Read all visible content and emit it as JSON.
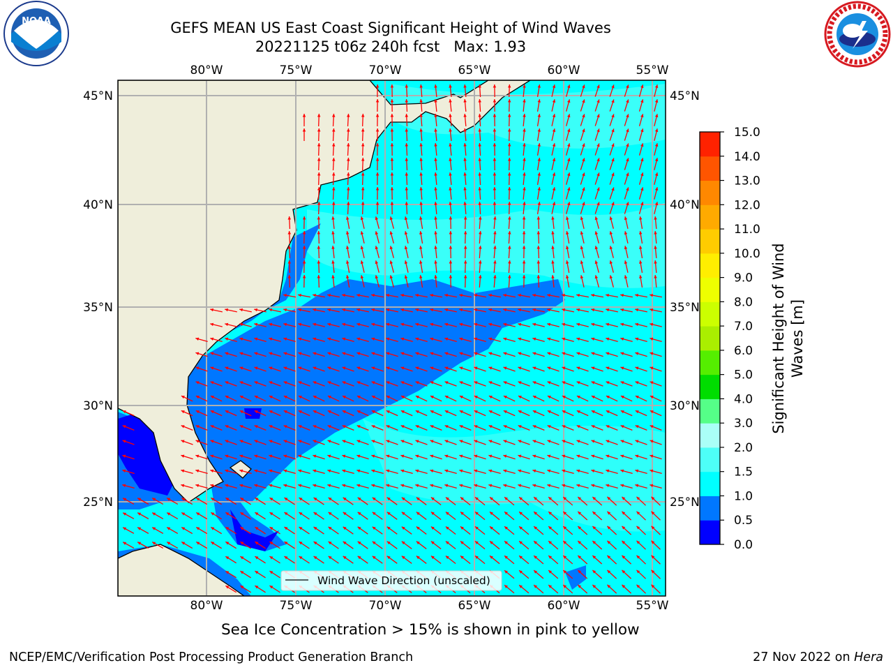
{
  "header": {
    "title_line1": "GEFS MEAN US East Coast Significant Height of Wind Waves",
    "title_line2": "20221125 t06z 240h fcst   Max: 1.93"
  },
  "logos": {
    "left": {
      "icon": "noaa-logo",
      "text": "NOAA"
    },
    "right": {
      "icon": "national-weather-service-logo"
    }
  },
  "map": {
    "lon_ticks": [
      "80°W",
      "75°W",
      "70°W",
      "65°W",
      "60°W",
      "55°W"
    ],
    "lat_ticks_left": [
      "45°N",
      "40°N",
      "35°N",
      "30°N",
      "25°N"
    ],
    "lat_ticks_right": [
      "45°N",
      "40°N",
      "35°N",
      "30°N",
      "25°N"
    ],
    "legend_label": "Wind Wave Direction (unscaled)",
    "colors": {
      "land": "#efeedb",
      "arrow": "#ff0000",
      "grid": "#b0b0b0"
    }
  },
  "colorbar": {
    "label_line1": "Significant Height of Wind",
    "label_line2": "Waves [m]",
    "ticks": [
      "0.0",
      "0.5",
      "1.0",
      "1.5",
      "2.0",
      "3.0",
      "4.0",
      "5.0",
      "6.0",
      "7.0",
      "8.0",
      "9.0",
      "10.0",
      "11.0",
      "12.0",
      "13.0",
      "14.0",
      "15.0"
    ],
    "colors": [
      "#0000ff",
      "#0077ff",
      "#00ffff",
      "#4dfff7",
      "#aafff7",
      "#55ff88",
      "#00dd00",
      "#55ee00",
      "#aaee00",
      "#ccff00",
      "#eeff00",
      "#ffee00",
      "#ffcc00",
      "#ffaa00",
      "#ff8800",
      "#ff5500",
      "#ff2200"
    ]
  },
  "notes": {
    "sea_ice": "Sea Ice Concentration > 15% is shown in pink to yellow",
    "footer_left": "NCEP/EMC/Verification Post Processing Product Generation Branch",
    "footer_date": "27 Nov 2022 on ",
    "footer_host": "Hera"
  }
}
